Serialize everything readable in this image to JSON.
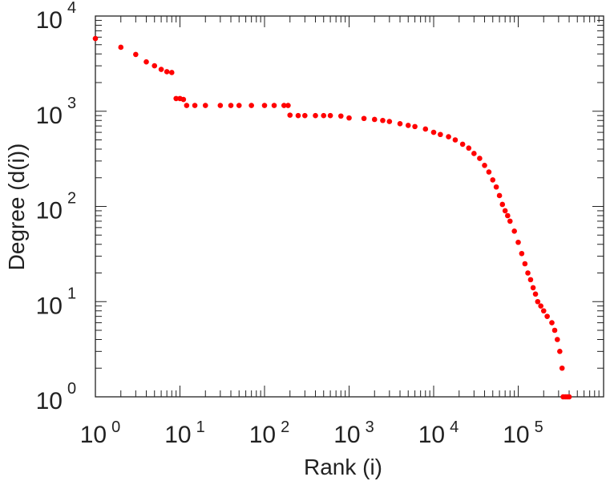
{
  "chart_data": {
    "type": "scatter",
    "title": "",
    "xlabel": "Rank (i)",
    "ylabel": "Degree (d(i))",
    "xscale": "log",
    "yscale": "log",
    "xlim": [
      1,
      1000000
    ],
    "ylim": [
      1,
      10000
    ],
    "x_ticks": [
      {
        "value": 1,
        "base": "10",
        "exp": "0"
      },
      {
        "value": 10,
        "base": "10",
        "exp": "1"
      },
      {
        "value": 100,
        "base": "10",
        "exp": "2"
      },
      {
        "value": 1000,
        "base": "10",
        "exp": "3"
      },
      {
        "value": 10000,
        "base": "10",
        "exp": "4"
      },
      {
        "value": 100000,
        "base": "10",
        "exp": "5"
      }
    ],
    "y_ticks": [
      {
        "value": 1,
        "base": "10",
        "exp": "0"
      },
      {
        "value": 10,
        "base": "10",
        "exp": "1"
      },
      {
        "value": 100,
        "base": "10",
        "exp": "2"
      },
      {
        "value": 1000,
        "base": "10",
        "exp": "3"
      },
      {
        "value": 10000,
        "base": "10",
        "exp": "4"
      }
    ],
    "grid": false,
    "marker_color": "#ff0000",
    "series": [
      {
        "points": [
          [
            1,
            5800
          ],
          [
            2,
            4700
          ],
          [
            3,
            3950
          ],
          [
            4,
            3300
          ],
          [
            5,
            3000
          ],
          [
            6,
            2750
          ],
          [
            7,
            2600
          ],
          [
            8,
            2550
          ],
          [
            9,
            1360
          ],
          [
            10,
            1360
          ],
          [
            11,
            1330
          ],
          [
            12,
            1150
          ],
          [
            15,
            1150
          ],
          [
            20,
            1150
          ],
          [
            30,
            1150
          ],
          [
            40,
            1150
          ],
          [
            50,
            1150
          ],
          [
            70,
            1150
          ],
          [
            100,
            1150
          ],
          [
            130,
            1150
          ],
          [
            170,
            1150
          ],
          [
            190,
            1150
          ],
          [
            200,
            910
          ],
          [
            250,
            900
          ],
          [
            300,
            900
          ],
          [
            400,
            900
          ],
          [
            500,
            900
          ],
          [
            600,
            900
          ],
          [
            800,
            890
          ],
          [
            1000,
            850
          ],
          [
            1500,
            840
          ],
          [
            2000,
            820
          ],
          [
            2500,
            800
          ],
          [
            3000,
            780
          ],
          [
            4000,
            740
          ],
          [
            5000,
            710
          ],
          [
            6000,
            690
          ],
          [
            8000,
            650
          ],
          [
            10000,
            600
          ],
          [
            12000,
            570
          ],
          [
            15000,
            540
          ],
          [
            18000,
            500
          ],
          [
            22000,
            450
          ],
          [
            26000,
            410
          ],
          [
            30000,
            360
          ],
          [
            35000,
            320
          ],
          [
            40000,
            270
          ],
          [
            45000,
            230
          ],
          [
            50000,
            190
          ],
          [
            55000,
            160
          ],
          [
            60000,
            130
          ],
          [
            65000,
            105
          ],
          [
            70000,
            90
          ],
          [
            75000,
            80
          ],
          [
            80000,
            70
          ],
          [
            90000,
            55
          ],
          [
            100000,
            42
          ],
          [
            110000,
            32
          ],
          [
            120000,
            25
          ],
          [
            130000,
            20
          ],
          [
            140000,
            17
          ],
          [
            150000,
            14
          ],
          [
            160000,
            12
          ],
          [
            170000,
            10
          ],
          [
            185000,
            9
          ],
          [
            200000,
            8
          ],
          [
            220000,
            7
          ],
          [
            250000,
            6
          ],
          [
            270000,
            5
          ],
          [
            290000,
            4
          ],
          [
            310000,
            3
          ],
          [
            330000,
            2
          ],
          [
            340000,
            1
          ],
          [
            360000,
            1
          ],
          [
            380000,
            1
          ],
          [
            400000,
            1
          ]
        ]
      }
    ]
  }
}
